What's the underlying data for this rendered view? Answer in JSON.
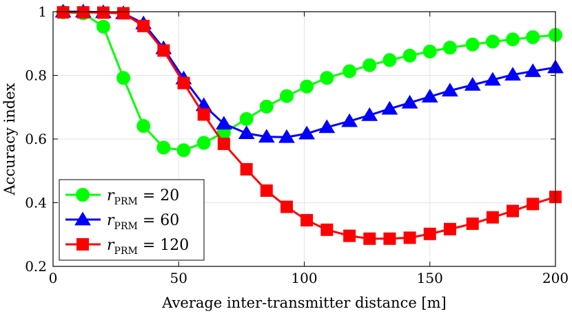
{
  "chart_data": {
    "type": "line",
    "title": "",
    "xlabel": "Average inter-transmitter distance [m]",
    "ylabel": "Accuracy index",
    "xlim": [
      0,
      200
    ],
    "ylim": [
      0.2,
      1.0
    ],
    "xticks": [
      0,
      50,
      100,
      150,
      200
    ],
    "yticks": [
      0.2,
      0.4,
      0.6,
      0.8,
      1.0
    ],
    "ytick_labels": [
      "0.2",
      "0.4",
      "0.6",
      "0.8",
      "1"
    ],
    "grid": true,
    "legend_position": "bottom-left",
    "x": [
      4,
      12,
      20,
      28,
      36,
      44,
      52,
      60,
      68,
      77,
      85,
      93,
      101,
      109,
      118,
      126,
      134,
      142,
      150,
      158,
      167,
      175,
      183,
      191,
      200
    ],
    "series": [
      {
        "name": "r_PRM = 20",
        "legend_main": "r",
        "legend_sub": "PRM",
        "legend_rest": " = 20",
        "color": "#00ff00",
        "marker": "circle",
        "values": [
          0.998,
          0.995,
          0.953,
          0.792,
          0.641,
          0.573,
          0.565,
          0.588,
          0.62,
          0.663,
          0.702,
          0.735,
          0.765,
          0.792,
          0.813,
          0.832,
          0.848,
          0.862,
          0.875,
          0.887,
          0.897,
          0.906,
          0.913,
          0.92,
          0.927
        ]
      },
      {
        "name": "r_PRM = 60",
        "legend_main": "r",
        "legend_sub": "PRM",
        "legend_rest": " = 60",
        "color": "#0000ff",
        "marker": "triangle",
        "values": [
          1.0,
          1.0,
          0.998,
          0.995,
          0.963,
          0.885,
          0.79,
          0.706,
          0.648,
          0.618,
          0.607,
          0.606,
          0.617,
          0.637,
          0.656,
          0.675,
          0.695,
          0.714,
          0.733,
          0.752,
          0.77,
          0.786,
          0.802,
          0.813,
          0.825
        ]
      },
      {
        "name": "r_PRM = 120",
        "legend_main": "r",
        "legend_sub": "PRM",
        "legend_rest": " = 120",
        "color": "#ff0000",
        "marker": "square",
        "values": [
          0.998,
          0.998,
          0.997,
          0.995,
          0.955,
          0.878,
          0.776,
          0.677,
          0.585,
          0.505,
          0.438,
          0.387,
          0.345,
          0.315,
          0.296,
          0.287,
          0.287,
          0.29,
          0.302,
          0.317,
          0.334,
          0.354,
          0.374,
          0.396,
          0.418
        ]
      }
    ]
  }
}
